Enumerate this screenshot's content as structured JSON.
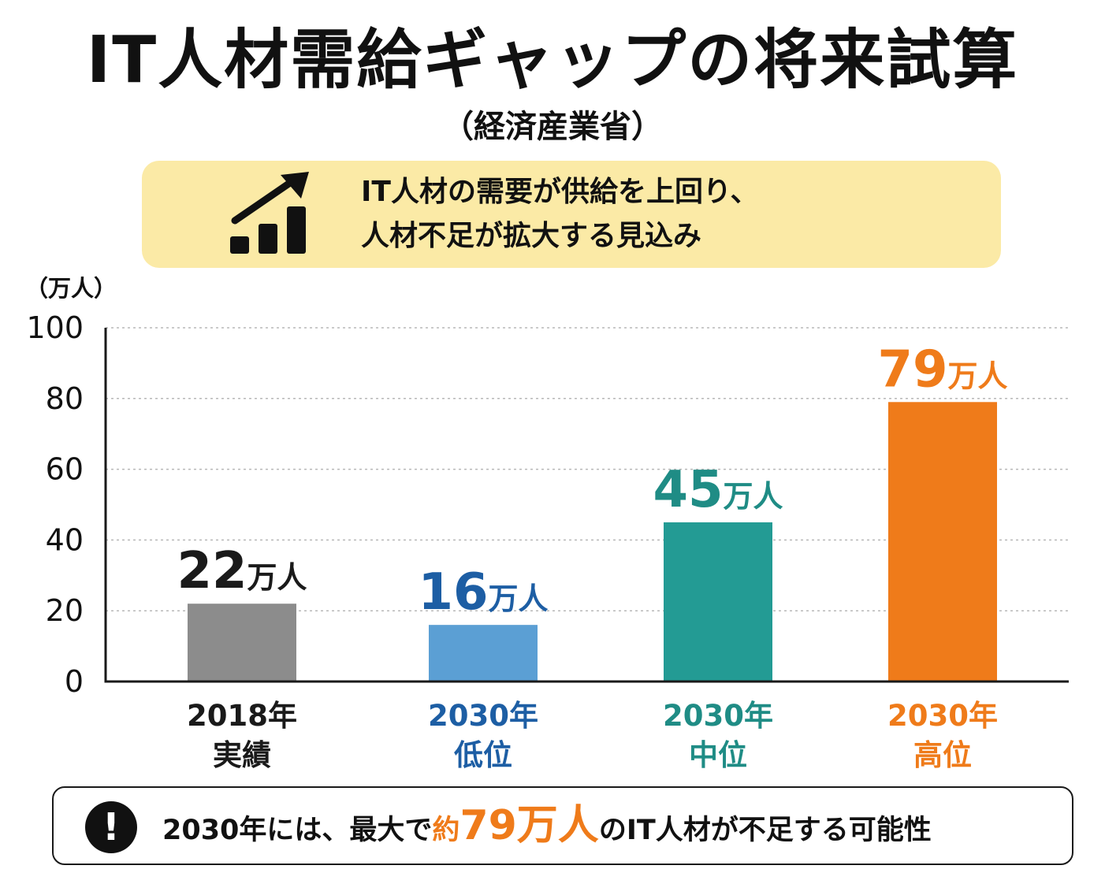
{
  "header": {
    "title": "IT人材需給ギャップの将来試算",
    "subtitle": "（経済産業省）"
  },
  "banner": {
    "icon": "growth-chart-arrow-icon",
    "line1": "IT人材の需要が供給を上回り、",
    "line2": "人材不足が拡大する見込み",
    "background_color": "#fbeaa6"
  },
  "chart_data": {
    "type": "bar",
    "unit_label": "（万人）",
    "ylim": [
      0,
      100
    ],
    "yticks": [
      "0",
      "20",
      "40",
      "60",
      "80",
      "100"
    ],
    "grid": true,
    "categories": [
      {
        "line1": "2018年",
        "line2": "実績"
      },
      {
        "line1": "2030年",
        "line2": "低位"
      },
      {
        "line1": "2030年",
        "line2": "中位"
      },
      {
        "line1": "2030年",
        "line2": "高位"
      }
    ],
    "values": [
      22,
      16,
      45,
      79
    ],
    "value_labels": [
      {
        "number": "22",
        "unit": "万人"
      },
      {
        "number": "16",
        "unit": "万人"
      },
      {
        "number": "45",
        "unit": "万人"
      },
      {
        "number": "79",
        "unit": "万人"
      }
    ],
    "bar_colors": [
      "#8c8c8c",
      "#5b9fd4",
      "#239b94",
      "#ef7b1a"
    ],
    "label_colors": [
      "#1a1a1a",
      "#1d5ea4",
      "#1f8c85",
      "#ef7b1a"
    ]
  },
  "callout": {
    "icon": "exclamation-icon",
    "text_before": "2030年には、最大で",
    "text_hl_small": "約",
    "text_hl_big": "79万人",
    "text_after": "のIT人材が不足する可能性",
    "accent_color": "#ef7b1a"
  }
}
